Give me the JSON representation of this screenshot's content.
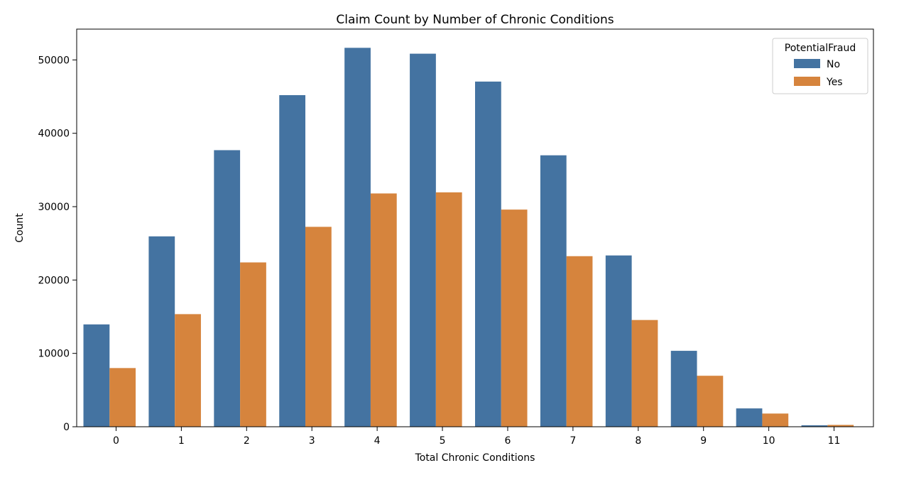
{
  "chart_data": {
    "type": "bar",
    "title": "Claim Count by Number of Chronic Conditions",
    "xlabel": "Total Chronic Conditions",
    "ylabel": "Count",
    "categories": [
      "0",
      "1",
      "2",
      "3",
      "4",
      "5",
      "6",
      "7",
      "8",
      "9",
      "10",
      "11"
    ],
    "series": [
      {
        "name": "No",
        "color": "#4473a1",
        "values": [
          13950,
          25950,
          37700,
          45200,
          51650,
          50850,
          47050,
          37000,
          23350,
          10350,
          2500,
          200
        ]
      },
      {
        "name": "Yes",
        "color": "#d6843d",
        "values": [
          8000,
          15350,
          22400,
          27250,
          31800,
          31950,
          29600,
          23250,
          14550,
          6950,
          1800,
          250
        ]
      }
    ],
    "ylim": [
      0,
      54200
    ],
    "yticks": [
      0,
      10000,
      20000,
      30000,
      40000,
      50000
    ],
    "legend": {
      "title": "PotentialFraud",
      "placement": "top-right"
    },
    "grid": false
  }
}
